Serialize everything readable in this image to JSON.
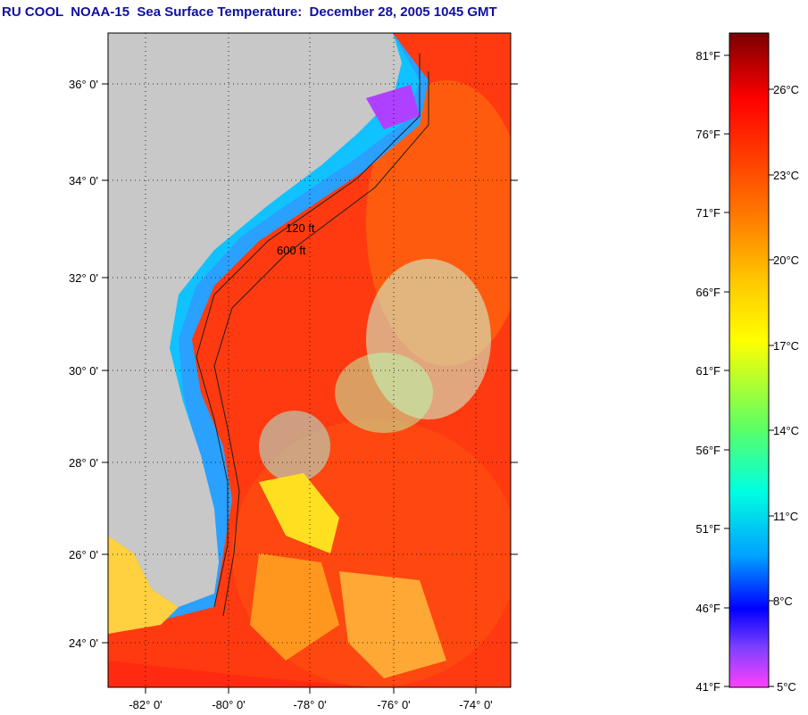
{
  "title": "RU COOL  NOAA-15  Sea Surface Temperature:  December 28, 2005 1045 GMT",
  "map": {
    "lat_labels": [
      "36° 0'",
      "34° 0'",
      "32° 0'",
      "30° 0'",
      "28° 0'",
      "26° 0'",
      "24° 0'"
    ],
    "lon_labels": [
      "-82° 0'",
      "-80° 0'",
      "-78° 0'",
      "-76° 0'",
      "-74° 0'"
    ],
    "contour_labels": [
      "120 ft",
      "600 ft"
    ],
    "colors": {
      "land": "#c8c8c8",
      "gulf_stream": "#ff3010",
      "cold_shelf": "#2aa0ff"
    }
  },
  "colorbar": {
    "fahrenheit_labels": [
      "81°F",
      "76°F",
      "71°F",
      "66°F",
      "61°F",
      "56°F",
      "51°F",
      "46°F",
      "41°F"
    ],
    "celsius_labels": [
      "26°C",
      "23°C",
      "20°C",
      "17°C",
      "14°C",
      "11°C",
      "8°C",
      "5°C"
    ],
    "stops": [
      "#8b0000",
      "#ff0000",
      "#ff8000",
      "#ffd000",
      "#ffff00",
      "#80ff40",
      "#00ffd0",
      "#00a0ff",
      "#0000ff",
      "#8040ff",
      "#ff40ff"
    ]
  }
}
